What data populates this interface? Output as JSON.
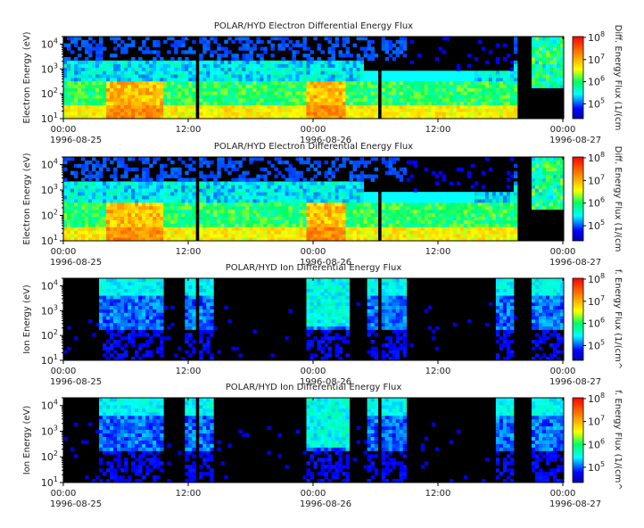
{
  "chart_data": [
    {
      "type": "heatmap",
      "title": "POLAR/HYD  Electron Differential Energy Flux",
      "ylabel": "Electron Energy (eV)",
      "colorbar_label": "Diff. Energy Flux (1/(cm",
      "yscale": "log",
      "ylim": [
        10,
        20000
      ],
      "yticks": [
        {
          "base": "10",
          "exp": "1"
        },
        {
          "base": "10",
          "exp": "2"
        },
        {
          "base": "10",
          "exp": "3"
        },
        {
          "base": "10",
          "exp": "4"
        }
      ],
      "cbar_ticks": [
        {
          "base": "10",
          "exp": "5"
        },
        {
          "base": "10",
          "exp": "6"
        },
        {
          "base": "10",
          "exp": "7"
        },
        {
          "base": "10",
          "exp": "8"
        }
      ],
      "xticks": [
        "00:00",
        "12:00",
        "00:00",
        "12:00",
        "00:00"
      ],
      "xdates": [
        "1996-08-25",
        "1996-08-26",
        "1996-08-27"
      ],
      "grid": false
    },
    {
      "type": "heatmap",
      "title": "POLAR/HYD  Electron Differential Energy Flux",
      "ylabel": "Electron Energy (eV)",
      "colorbar_label": "Diff. Energy Flux (1/(cm",
      "yscale": "log",
      "ylim": [
        10,
        20000
      ],
      "yticks": [
        {
          "base": "10",
          "exp": "1"
        },
        {
          "base": "10",
          "exp": "2"
        },
        {
          "base": "10",
          "exp": "3"
        },
        {
          "base": "10",
          "exp": "4"
        }
      ],
      "cbar_ticks": [
        {
          "base": "10",
          "exp": "5"
        },
        {
          "base": "10",
          "exp": "6"
        },
        {
          "base": "10",
          "exp": "7"
        },
        {
          "base": "10",
          "exp": "8"
        }
      ],
      "xticks": [
        "00:00",
        "12:00",
        "00:00",
        "12:00",
        "00:00"
      ],
      "xdates": [
        "1996-08-25",
        "1996-08-26",
        "1996-08-27"
      ],
      "grid": false
    },
    {
      "type": "heatmap",
      "title": "POLAR/HYD  Ion Differential Energy Flux",
      "ylabel": "Ion Energy (eV)",
      "colorbar_label": "f. Energy Flux (1/(cm^",
      "yscale": "log",
      "ylim": [
        10,
        20000
      ],
      "yticks": [
        {
          "base": "10",
          "exp": "1"
        },
        {
          "base": "10",
          "exp": "2"
        },
        {
          "base": "10",
          "exp": "3"
        },
        {
          "base": "10",
          "exp": "4"
        }
      ],
      "cbar_ticks": [
        {
          "base": "10",
          "exp": "5"
        },
        {
          "base": "10",
          "exp": "6"
        },
        {
          "base": "10",
          "exp": "7"
        },
        {
          "base": "10",
          "exp": "8"
        }
      ],
      "xticks": [
        "00:00",
        "12:00",
        "00:00",
        "12:00",
        "00:00"
      ],
      "xdates": [
        "1996-08-25",
        "1996-08-26",
        "1996-08-27"
      ],
      "grid": false
    },
    {
      "type": "heatmap",
      "title": "POLAR/HYD  Ion Differential Energy Flux",
      "ylabel": "Ion Energy (eV)",
      "colorbar_label": "f. Energy Flux (1/(cm^",
      "yscale": "log",
      "ylim": [
        10,
        20000
      ],
      "yticks": [
        {
          "base": "10",
          "exp": "1"
        },
        {
          "base": "10",
          "exp": "2"
        },
        {
          "base": "10",
          "exp": "3"
        },
        {
          "base": "10",
          "exp": "4"
        }
      ],
      "cbar_ticks": [
        {
          "base": "10",
          "exp": "5"
        },
        {
          "base": "10",
          "exp": "6"
        },
        {
          "base": "10",
          "exp": "7"
        },
        {
          "base": "10",
          "exp": "8"
        }
      ],
      "xticks": [
        "00:00",
        "12:00",
        "00:00",
        "12:00",
        "00:00"
      ],
      "xdates": [
        "1996-08-25",
        "1996-08-26",
        "1996-08-27"
      ],
      "grid": false
    }
  ]
}
